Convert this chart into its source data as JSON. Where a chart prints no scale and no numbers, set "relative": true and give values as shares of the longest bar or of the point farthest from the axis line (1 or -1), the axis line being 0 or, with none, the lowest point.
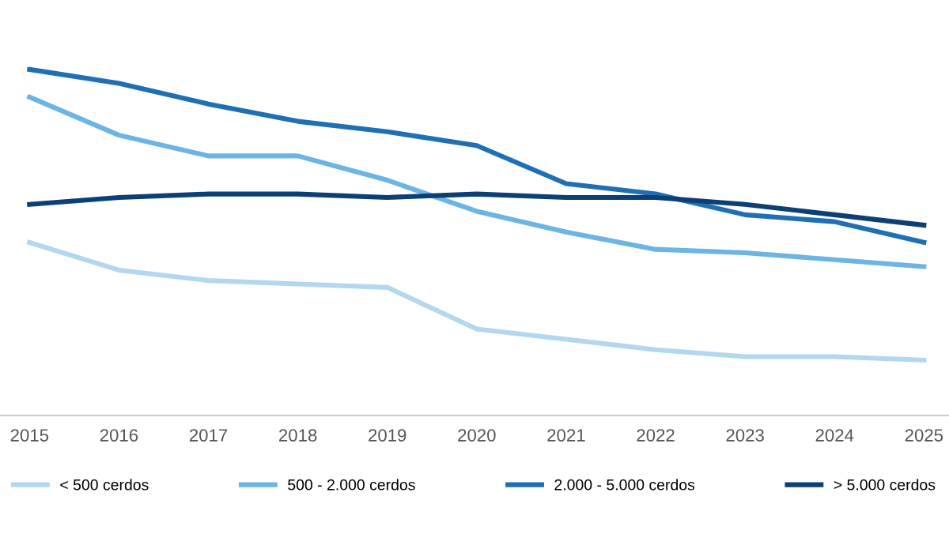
{
  "chart_data": {
    "type": "line",
    "relative": true,
    "categories": [
      "2015",
      "2016",
      "2017",
      "2018",
      "2019",
      "2020",
      "2021",
      "2022",
      "2023",
      "2024",
      "2025"
    ],
    "series": [
      {
        "name": "< 500 cerdos",
        "color": "#b3d7ee",
        "values": [
          0.5,
          0.42,
          0.39,
          0.38,
          0.37,
          0.25,
          0.22,
          0.19,
          0.17,
          0.17,
          0.16
        ]
      },
      {
        "name": "500 - 2.000 cerdos",
        "color": "#6cb4e4",
        "values": [
          0.92,
          0.81,
          0.75,
          0.75,
          0.68,
          0.59,
          0.53,
          0.48,
          0.47,
          0.45,
          0.43
        ]
      },
      {
        "name": "2.000 - 5.000 cerdos",
        "color": "#1f6fb5",
        "values": [
          1,
          0.96,
          0.9,
          0.85,
          0.82,
          0.78,
          0.67,
          0.64,
          0.58,
          0.56,
          0.5
        ]
      },
      {
        "name": "> 5.000 cerdos",
        "color": "#0b3f75",
        "values": [
          0.61,
          0.63,
          0.64,
          0.64,
          0.63,
          0.64,
          0.63,
          0.63,
          0.61,
          0.58,
          0.55
        ]
      }
    ],
    "legend": "bottom",
    "marker": "none",
    "line_style": "solid"
  }
}
